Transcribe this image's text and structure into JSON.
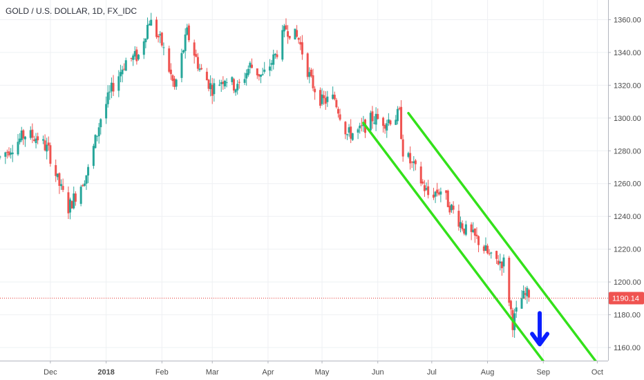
{
  "chart_data": {
    "type": "candlestick",
    "title": "GOLD / U.S. DOLLAR, 1D, FX_IDC",
    "x_ticks": [
      {
        "label": "Dec",
        "date": "2017-12-01"
      },
      {
        "label": "2018",
        "date": "2018-01-01",
        "bold": true
      },
      {
        "label": "Feb",
        "date": "2018-02-01"
      },
      {
        "label": "Mar",
        "date": "2018-03-01"
      },
      {
        "label": "Apr",
        "date": "2018-04-01"
      },
      {
        "label": "May",
        "date": "2018-05-01"
      },
      {
        "label": "Jun",
        "date": "2018-06-01"
      },
      {
        "label": "Jul",
        "date": "2018-07-01"
      },
      {
        "label": "Aug",
        "date": "2018-08-01"
      },
      {
        "label": "Sep",
        "date": "2018-09-01"
      },
      {
        "label": "Oct",
        "date": "2018-10-01"
      }
    ],
    "y_ticks": [
      1160,
      1180,
      1200,
      1220,
      1240,
      1260,
      1280,
      1300,
      1320,
      1340,
      1360
    ],
    "ylim": [
      1152,
      1372
    ],
    "xlim": [
      "2017-11-03",
      "2018-10-07"
    ],
    "last_price": 1190.14,
    "last_price_label": "1190.14",
    "up_color": "#26a69a",
    "down_color": "#ef5350",
    "channel_color": "#33e11a",
    "arrow_color": "#0a1eff",
    "anchors": [
      [
        "2017-11-03",
        1276
      ],
      [
        "2017-11-10",
        1283
      ],
      [
        "2017-11-17",
        1290
      ],
      [
        "2017-11-24",
        1288
      ],
      [
        "2017-11-30",
        1280
      ],
      [
        "2017-12-05",
        1262
      ],
      [
        "2017-12-11",
        1245
      ],
      [
        "2017-12-15",
        1253
      ],
      [
        "2017-12-22",
        1268
      ],
      [
        "2017-12-29",
        1300
      ],
      [
        "2018-01-05",
        1320
      ],
      [
        "2018-01-12",
        1335
      ],
      [
        "2018-01-19",
        1338
      ],
      [
        "2018-01-25",
        1360
      ],
      [
        "2018-02-01",
        1345
      ],
      [
        "2018-02-08",
        1318
      ],
      [
        "2018-02-15",
        1352
      ],
      [
        "2018-02-22",
        1330
      ],
      [
        "2018-03-01",
        1318
      ],
      [
        "2018-03-08",
        1325
      ],
      [
        "2018-03-15",
        1318
      ],
      [
        "2018-03-22",
        1332
      ],
      [
        "2018-03-29",
        1325
      ],
      [
        "2018-04-05",
        1338
      ],
      [
        "2018-04-11",
        1355
      ],
      [
        "2018-04-18",
        1348
      ],
      [
        "2018-04-25",
        1322
      ],
      [
        "2018-05-01",
        1310
      ],
      [
        "2018-05-08",
        1312
      ],
      [
        "2018-05-15",
        1290
      ],
      [
        "2018-05-22",
        1292
      ],
      [
        "2018-05-29",
        1300
      ],
      [
        "2018-06-05",
        1298
      ],
      [
        "2018-06-13",
        1302
      ],
      [
        "2018-06-15",
        1280
      ],
      [
        "2018-06-22",
        1268
      ],
      [
        "2018-06-29",
        1253
      ],
      [
        "2018-07-06",
        1256
      ],
      [
        "2018-07-13",
        1243
      ],
      [
        "2018-07-20",
        1231
      ],
      [
        "2018-07-27",
        1225
      ],
      [
        "2018-08-03",
        1214
      ],
      [
        "2018-08-10",
        1212
      ],
      [
        "2018-08-15",
        1175
      ],
      [
        "2018-08-20",
        1190
      ],
      [
        "2018-08-24",
        1193
      ]
    ],
    "channel_lines": [
      {
        "name": "upper",
        "start": [
          "2018-06-18",
          1303
        ],
        "end": [
          "2018-10-02",
          1149
        ]
      },
      {
        "name": "lower",
        "start": [
          "2018-05-24",
          1297
        ],
        "end": [
          "2018-09-07",
          1143
        ]
      }
    ],
    "arrow": {
      "date": "2018-08-30",
      "top": 1181,
      "bottom": 1162
    }
  }
}
